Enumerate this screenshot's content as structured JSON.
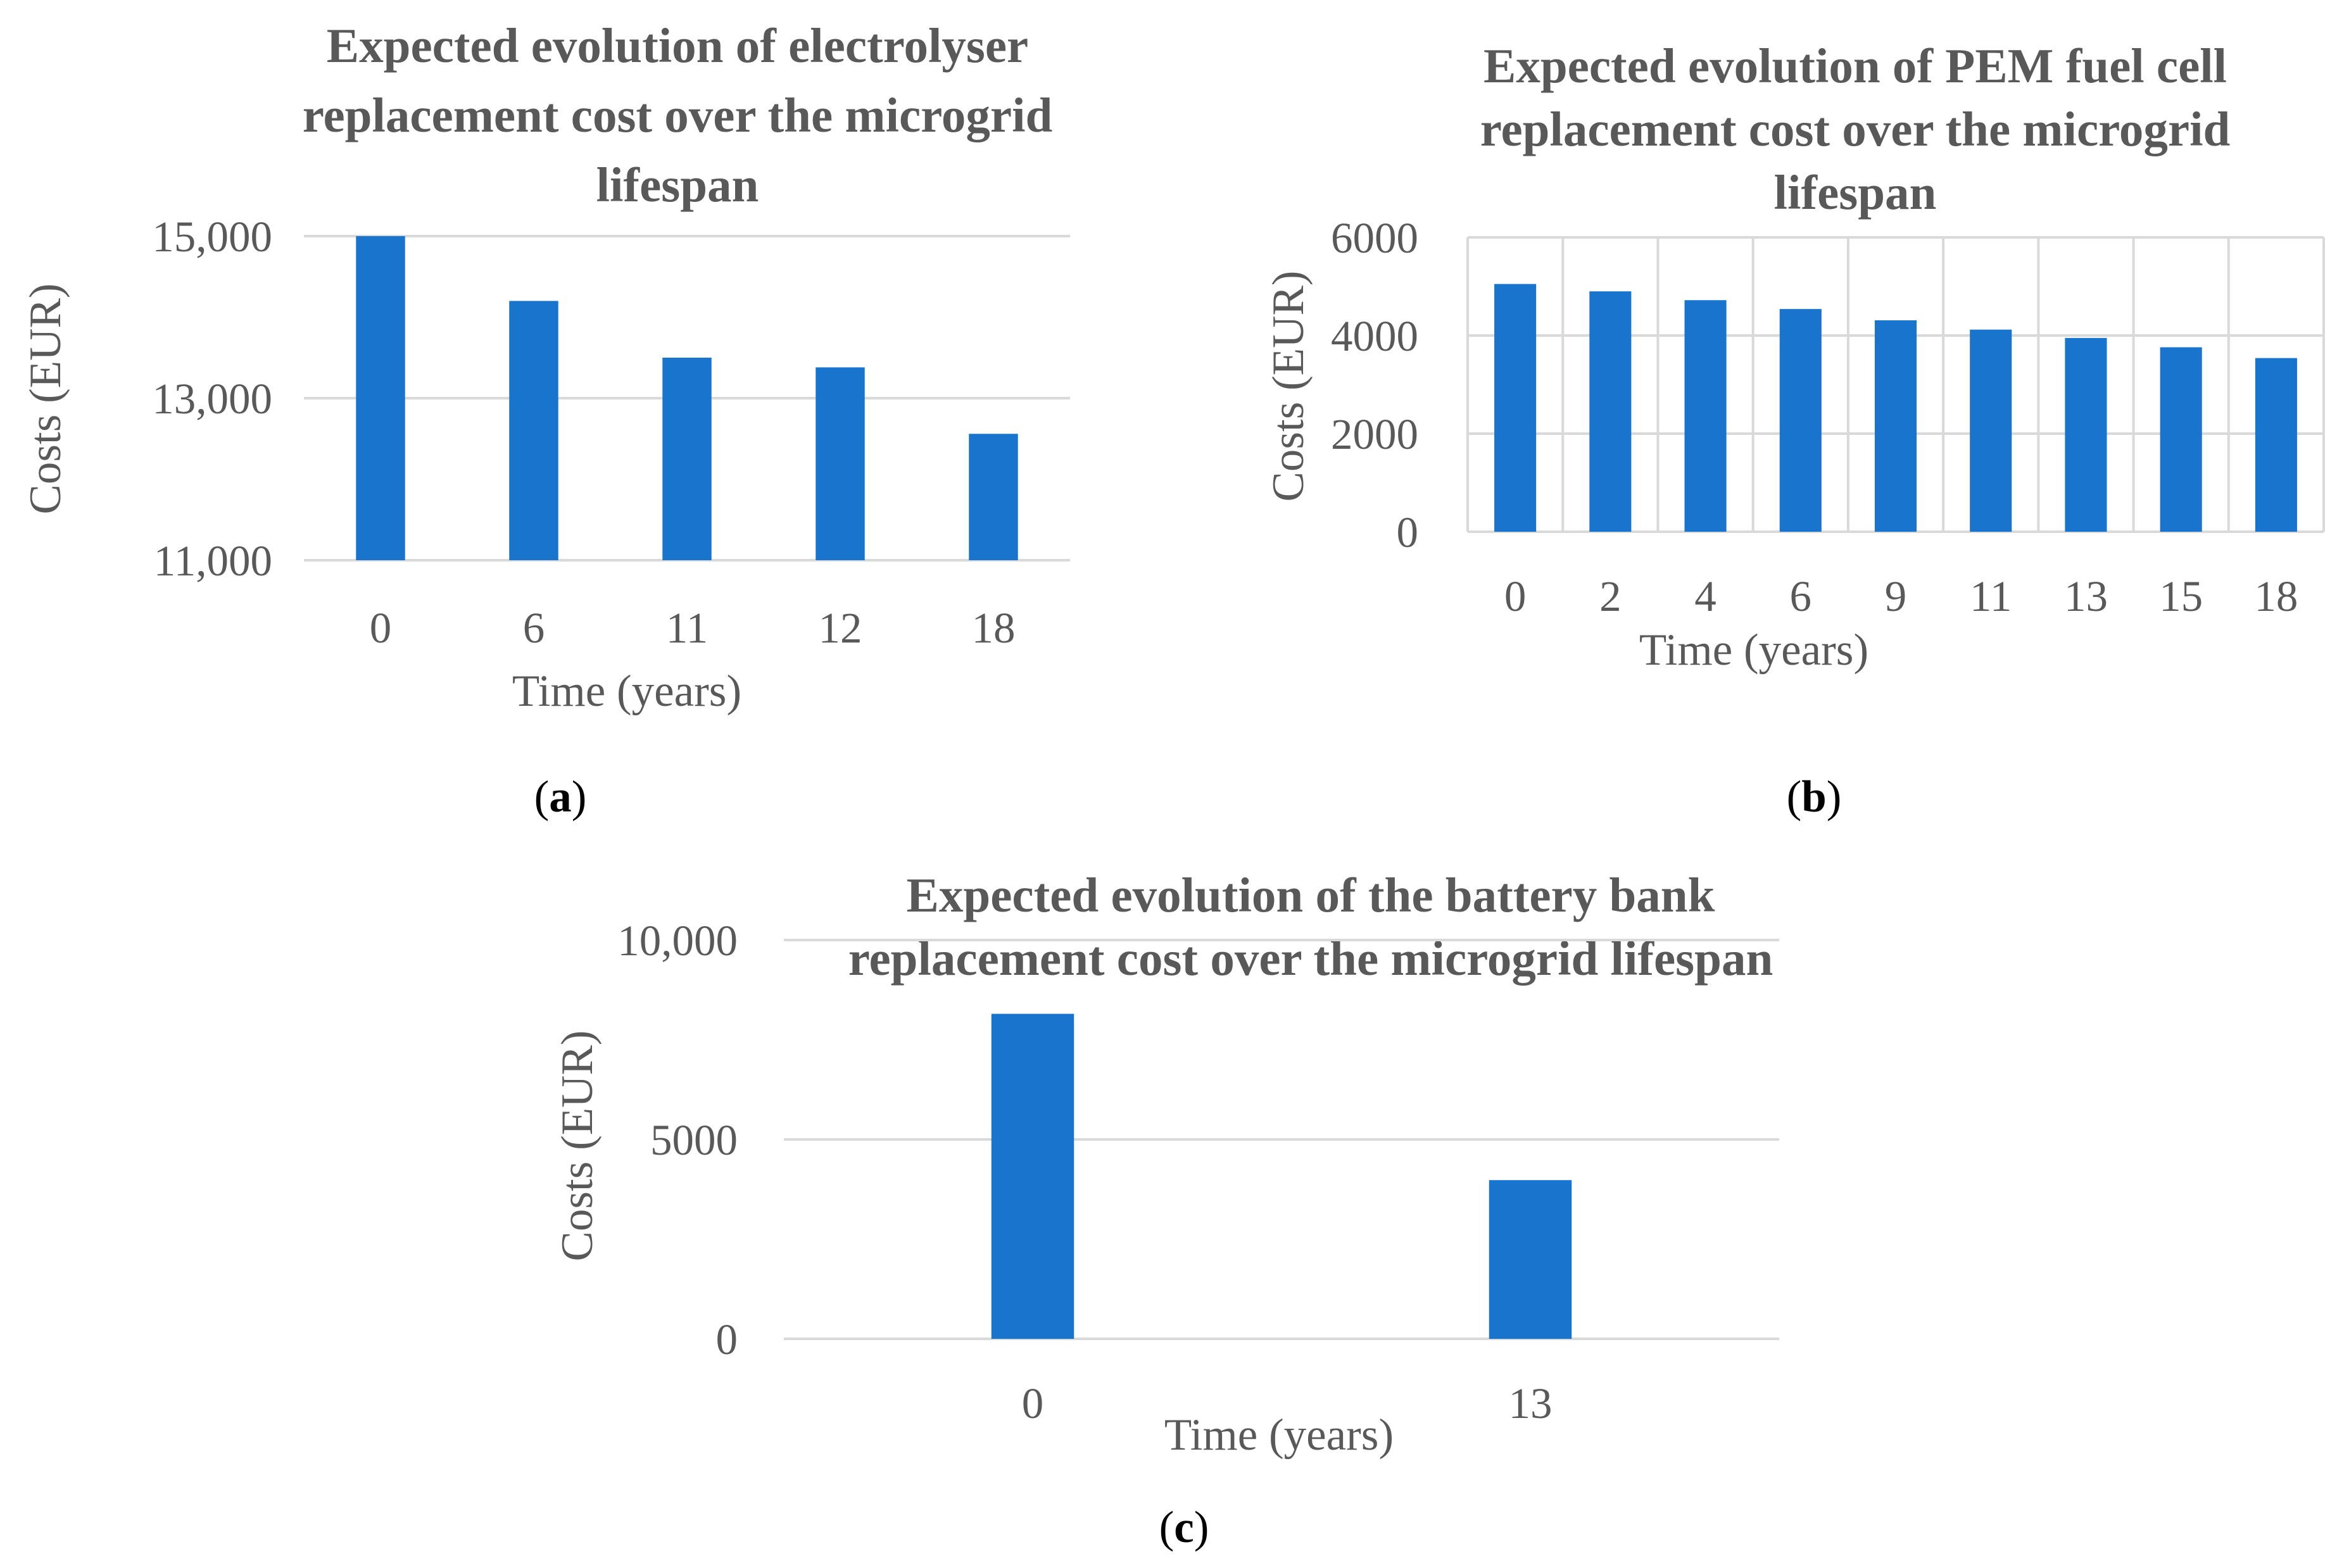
{
  "chart_data": [
    {
      "type": "bar",
      "title": "Expected evolution of electrolyser replacement cost over the microgrid lifespan",
      "title_lines": [
        "Expected evolution of electrolyser",
        "replacement cost over the microgrid",
        "lifespan"
      ],
      "xlabel": "Time (years)",
      "ylabel": "Costs (EUR)",
      "categories": [
        "0",
        "6",
        "11",
        "12",
        "18"
      ],
      "values": [
        15000,
        14200,
        13500,
        13380,
        12560
      ],
      "ylim": [
        11000,
        15000
      ],
      "yticks": [
        11000,
        13000,
        15000
      ],
      "ytick_labels": [
        "11,000",
        "13,000",
        "15,000"
      ],
      "grid": "horizontal",
      "vertical_grid": false,
      "panel_label": "a"
    },
    {
      "type": "bar",
      "title": "Expected evolution of PEM fuel cell replacement cost over the microgrid lifespan",
      "title_lines": [
        "Expected evolution of PEM fuel cell",
        "replacement cost over the microgrid",
        "lifespan"
      ],
      "xlabel": "Time (years)",
      "ylabel": "Costs (EUR)",
      "categories": [
        "0",
        "2",
        "4",
        "6",
        "9",
        "11",
        "13",
        "15",
        "18"
      ],
      "values": [
        5050,
        4900,
        4720,
        4540,
        4310,
        4120,
        3950,
        3760,
        3540
      ],
      "ylim": [
        0,
        6000
      ],
      "yticks": [
        0,
        2000,
        4000,
        6000
      ],
      "ytick_labels": [
        "0",
        "2000",
        "4000",
        "6000"
      ],
      "grid": "horizontal",
      "vertical_grid": true,
      "panel_label": "b"
    },
    {
      "type": "bar",
      "title": "Expected evolution of the battery bank replacement cost over the microgrid lifespan",
      "title_lines": [
        "Expected evolution of the battery bank",
        "replacement cost over the microgrid lifespan"
      ],
      "xlabel": "Time (years)",
      "ylabel": "Costs (EUR)",
      "categories": [
        "0",
        "13"
      ],
      "values": [
        8150,
        3980
      ],
      "ylim": [
        0,
        10000
      ],
      "yticks": [
        0,
        5000,
        10000
      ],
      "ytick_labels": [
        "0",
        "5000",
        "10,000"
      ],
      "grid": "horizontal",
      "vertical_grid": false,
      "panel_label": "c"
    }
  ]
}
